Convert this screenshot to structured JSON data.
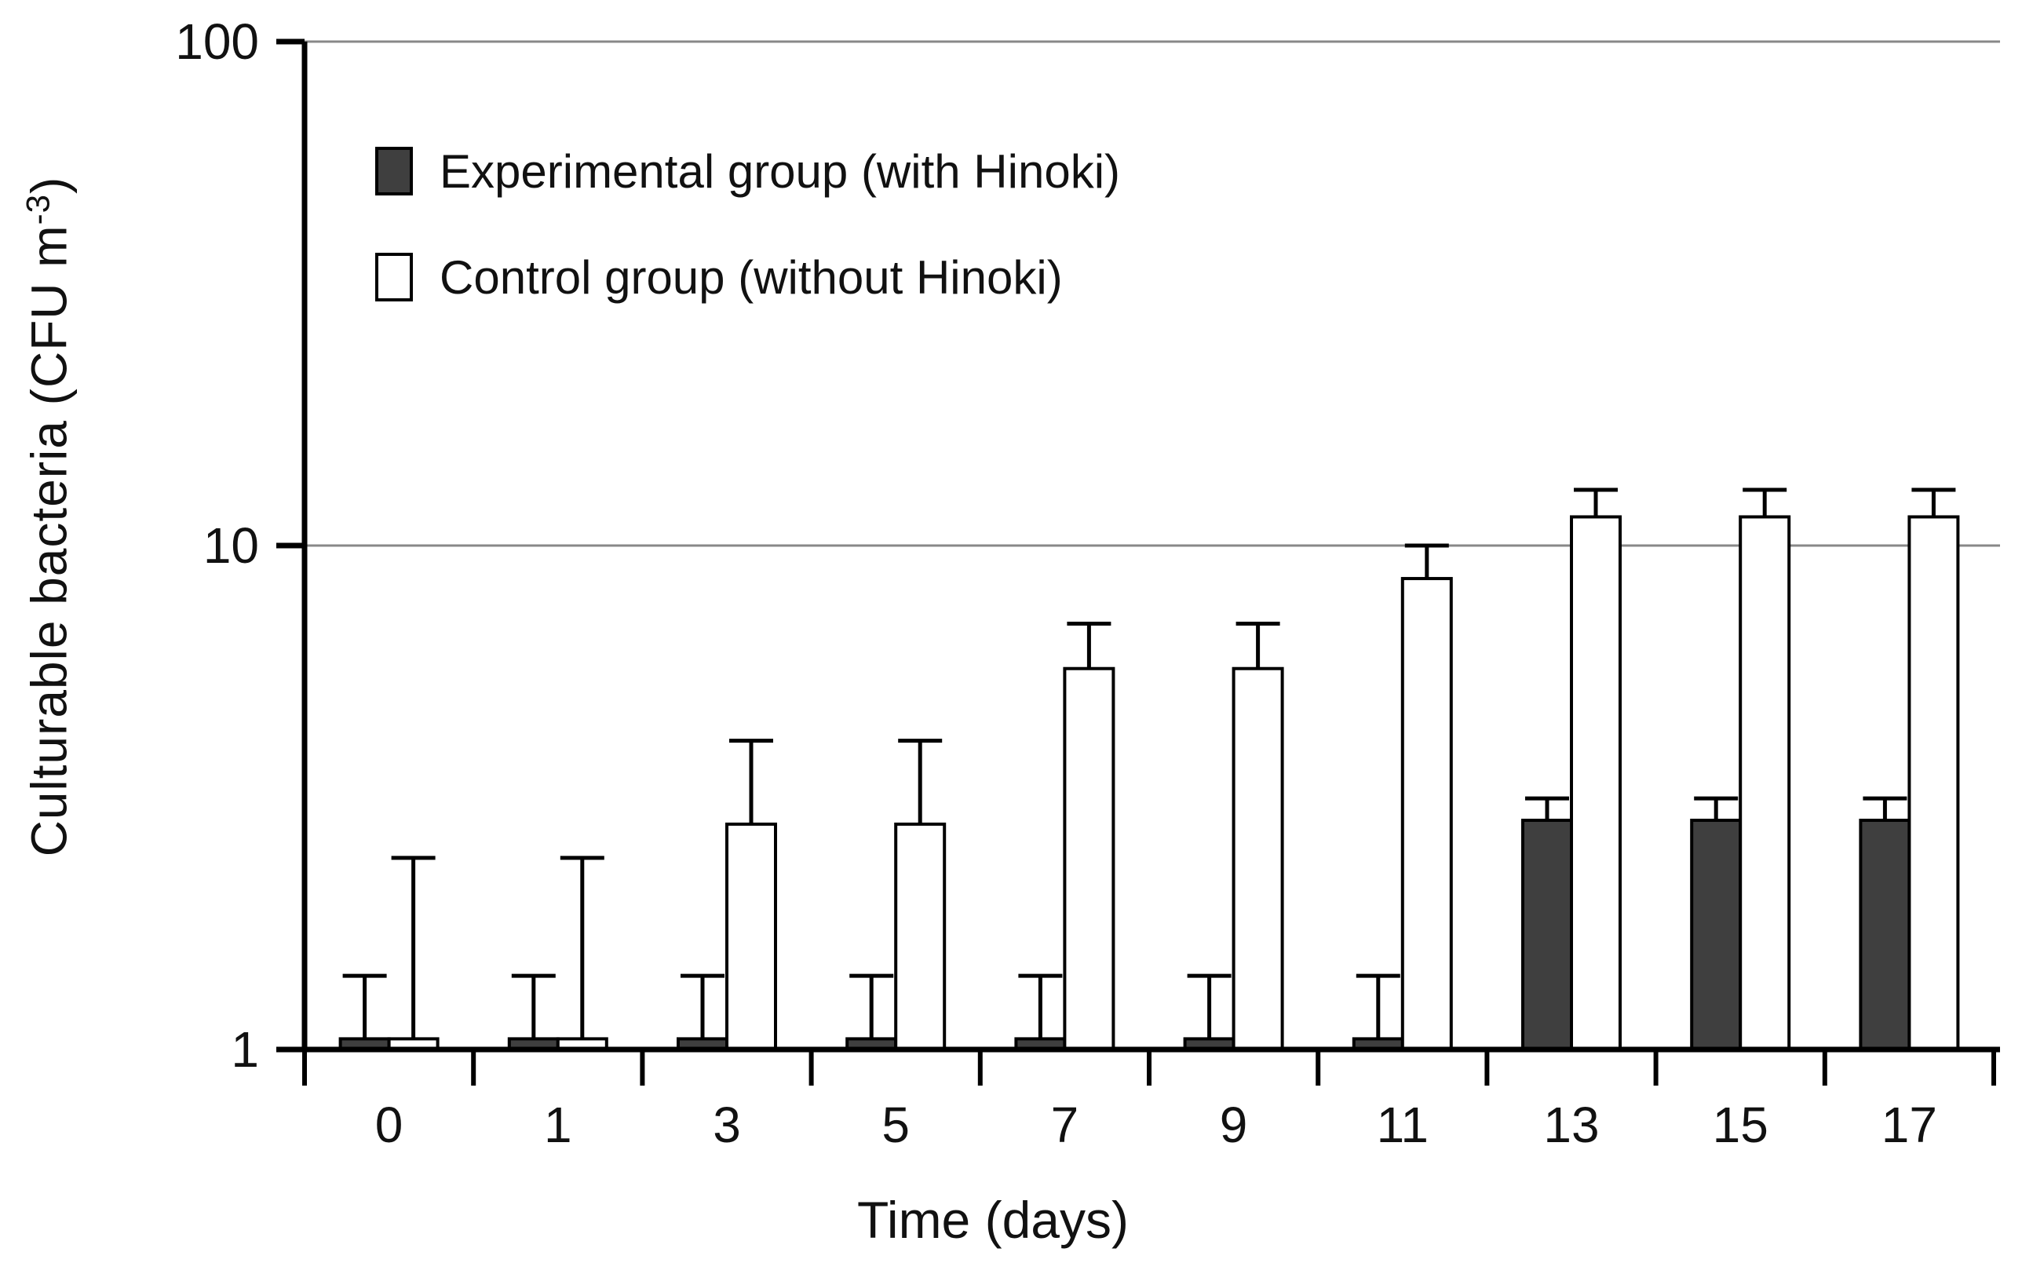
{
  "figure": {
    "background": "#ffffff",
    "axis_color": "#000000",
    "gridline_color": "#888888"
  },
  "y_axis": {
    "title_main": "Culturable bacteria (CFU m",
    "title_sup": "-3",
    "title_end": ")",
    "title_full": "Culturable bacteria (CFU m⁻³)",
    "tick_labels": [
      "1",
      "10",
      "100"
    ]
  },
  "x_axis": {
    "title": "Time (days)",
    "tick_labels": [
      "0",
      "1",
      "3",
      "5",
      "7",
      "9",
      "11",
      "13",
      "15",
      "17"
    ]
  },
  "legend": {
    "items": [
      {
        "label": "Experimental group (with Hinoki)",
        "swatch": "filled-dark-square",
        "color": "#3f3f3f"
      },
      {
        "label": "Control group (without Hinoki)",
        "swatch": "open-square",
        "color": "#ffffff"
      }
    ]
  },
  "chart_data": {
    "type": "bar",
    "title": "",
    "xlabel": "Time (days)",
    "ylabel": "Culturable bacteria (CFU m⁻³)",
    "yscale": "log",
    "ylim": [
      1,
      100
    ],
    "gridlines_at": [
      10,
      100
    ],
    "grid": true,
    "legend_position": "top-left-inside",
    "categories": [
      "0",
      "1",
      "3",
      "5",
      "7",
      "9",
      "11",
      "13",
      "15",
      "17"
    ],
    "series": [
      {
        "name": "Experimental group (with Hinoki)",
        "fill": "#3f3f3f",
        "values": [
          1.05,
          1.05,
          1.05,
          1.05,
          1.05,
          1.05,
          1.05,
          2.85,
          2.85,
          2.85
        ],
        "error_top": [
          1.4,
          1.4,
          1.4,
          1.4,
          1.4,
          1.4,
          1.4,
          3.15,
          3.15,
          3.15
        ]
      },
      {
        "name": "Control group (without Hinoki)",
        "fill": "#ffffff",
        "values": [
          1.05,
          1.05,
          2.8,
          2.8,
          5.7,
          5.7,
          8.6,
          11.4,
          11.4,
          11.4
        ],
        "error_top": [
          2.4,
          2.4,
          4.1,
          4.1,
          7.0,
          7.0,
          10.0,
          12.9,
          12.9,
          12.9
        ]
      }
    ]
  }
}
